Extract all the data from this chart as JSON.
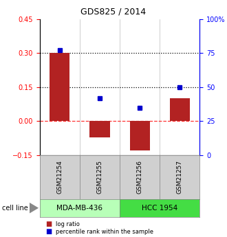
{
  "title": "GDS825 / 2014",
  "samples": [
    "GSM21254",
    "GSM21255",
    "GSM21256",
    "GSM21257"
  ],
  "log_ratios": [
    0.3,
    -0.072,
    -0.13,
    0.1
  ],
  "percentile_ranks": [
    77,
    42,
    35,
    50
  ],
  "left_ylim": [
    -0.15,
    0.45
  ],
  "right_ylim": [
    0,
    100
  ],
  "left_yticks": [
    -0.15,
    0,
    0.15,
    0.3,
    0.45
  ],
  "right_yticks": [
    0,
    25,
    50,
    75,
    100
  ],
  "right_yticklabels": [
    "0",
    "25",
    "50",
    "75",
    "100%"
  ],
  "hlines_dotted": [
    0.15,
    0.3
  ],
  "hline_dashed": 0.0,
  "bar_color": "#b22222",
  "square_color": "#0000cd",
  "bar_width": 0.5,
  "cell_lines": [
    {
      "label": "MDA-MB-436",
      "samples": [
        0,
        1
      ],
      "color": "#b8ffb8"
    },
    {
      "label": "HCC 1954",
      "samples": [
        2,
        3
      ],
      "color": "#44dd44"
    }
  ],
  "cell_line_label": "cell line",
  "legend_items": [
    {
      "label": "log ratio",
      "color": "#b22222"
    },
    {
      "label": "percentile rank within the sample",
      "color": "#0000cd"
    }
  ],
  "bg_color": "#ffffff",
  "sample_box_color": "#d0d0d0",
  "arrow_color": "#888888"
}
